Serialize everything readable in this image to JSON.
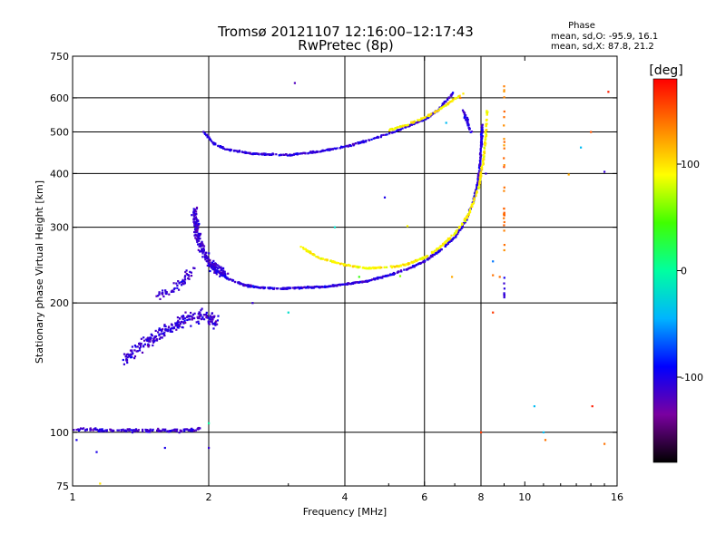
{
  "header": {
    "title_line1": "Tromsø 20121107 12:16:00–12:17:43",
    "title_line2": "RwPretec (8p)",
    "phase_heading": "Phase",
    "phase_o": "mean, sd,O: -95.9, 16.1",
    "phase_x": "mean, sd,X:  87.8, 21.2"
  },
  "chart_data": {
    "type": "scatter",
    "xlabel": "Frequency [MHz]",
    "ylabel": "Stationary phase Virtual Height [km]",
    "xscale": "log",
    "yscale": "log",
    "xlim": [
      1,
      16
    ],
    "ylim": [
      75,
      750
    ],
    "xticks": [
      1,
      2,
      4,
      6,
      8,
      10,
      16
    ],
    "yticks": [
      75,
      100,
      200,
      300,
      400,
      500,
      600,
      750
    ],
    "xgrid": [
      2,
      4,
      6,
      8
    ],
    "ygrid": [
      100,
      200,
      300,
      400,
      500,
      600
    ],
    "colorbar": {
      "label": "[deg]",
      "range": [
        -180,
        180
      ],
      "ticks": [
        100,
        0,
        -100
      ],
      "stops": [
        "#000000",
        "#7a00a0",
        "#0000ff",
        "#00b4ff",
        "#00ffa0",
        "#40ff00",
        "#ffff00",
        "#ff8000",
        "#ff0000"
      ]
    },
    "series": [
      {
        "type": "polyline",
        "points": [
          [
            1.0,
            102
          ],
          [
            1.2,
            101
          ],
          [
            1.4,
            101
          ],
          [
            1.6,
            101
          ],
          [
            1.8,
            101
          ],
          [
            1.92,
            102
          ]
        ],
        "phase": -110,
        "jitter": [
          0.01,
          0.012
        ],
        "count": 160
      },
      {
        "type": "polyline",
        "points": [
          [
            1.3,
            148
          ],
          [
            1.4,
            158
          ],
          [
            1.5,
            165
          ],
          [
            1.6,
            172
          ],
          [
            1.7,
            178
          ],
          [
            1.8,
            185
          ],
          [
            1.95,
            188
          ],
          [
            2.08,
            180
          ]
        ],
        "phase": -110,
        "jitter": [
          0.03,
          0.05
        ],
        "count": 260
      },
      {
        "type": "polyline",
        "points": [
          [
            1.5,
            205
          ],
          [
            1.65,
            212
          ],
          [
            1.75,
            225
          ],
          [
            1.85,
            240
          ]
        ],
        "phase": -110,
        "jitter": [
          0.02,
          0.03
        ],
        "count": 60
      },
      {
        "type": "polyline",
        "points": [
          [
            1.86,
            330
          ],
          [
            1.88,
            300
          ],
          [
            1.9,
            280
          ],
          [
            1.95,
            262
          ],
          [
            2.0,
            250
          ],
          [
            2.05,
            243
          ],
          [
            2.1,
            238
          ],
          [
            2.2,
            232
          ]
        ],
        "phase": -110,
        "jitter": [
          0.02,
          0.04
        ],
        "count": 230
      },
      {
        "type": "polyline",
        "points": [
          [
            2.0,
            245
          ],
          [
            2.08,
            238
          ],
          [
            2.2,
            228
          ],
          [
            2.4,
            220
          ],
          [
            2.6,
            217
          ],
          [
            2.9,
            216
          ],
          [
            3.2,
            217
          ],
          [
            3.6,
            218
          ],
          [
            4.0,
            221
          ],
          [
            4.5,
            225
          ],
          [
            5.0,
            232
          ],
          [
            5.5,
            240
          ],
          [
            6.0,
            250
          ],
          [
            6.5,
            265
          ],
          [
            7.0,
            285
          ],
          [
            7.4,
            310
          ],
          [
            7.7,
            345
          ],
          [
            7.9,
            390
          ],
          [
            8.0,
            450
          ],
          [
            8.05,
            520
          ]
        ],
        "phase": -105,
        "jitter": [
          0.006,
          0.006
        ],
        "count": 600
      },
      {
        "type": "polyline",
        "points": [
          [
            3.2,
            270
          ],
          [
            3.5,
            255
          ],
          [
            4.0,
            245
          ],
          [
            4.5,
            241
          ],
          [
            5.0,
            242
          ],
          [
            5.5,
            246
          ],
          [
            6.0,
            255
          ],
          [
            6.5,
            270
          ],
          [
            7.0,
            290
          ],
          [
            7.5,
            320
          ],
          [
            7.9,
            370
          ],
          [
            8.1,
            430
          ],
          [
            8.2,
            490
          ],
          [
            8.25,
            560
          ]
        ],
        "phase": 95,
        "jitter": [
          0.006,
          0.006
        ],
        "count": 380
      },
      {
        "type": "polyline",
        "points": [
          [
            1.95,
            500
          ],
          [
            2.05,
            470
          ],
          [
            2.2,
            455
          ],
          [
            2.5,
            445
          ],
          [
            3.0,
            442
          ],
          [
            3.5,
            450
          ],
          [
            4.0,
            462
          ],
          [
            4.5,
            478
          ],
          [
            5.0,
            495
          ],
          [
            5.5,
            515
          ],
          [
            6.0,
            535
          ],
          [
            6.4,
            560
          ],
          [
            6.7,
            590
          ],
          [
            7.0,
            625
          ]
        ],
        "phase": -105,
        "jitter": [
          0.006,
          0.006
        ],
        "count": 340
      },
      {
        "type": "polyline",
        "points": [
          [
            5.0,
            505
          ],
          [
            5.5,
            520
          ],
          [
            6.0,
            540
          ],
          [
            6.5,
            565
          ],
          [
            6.9,
            590
          ],
          [
            7.3,
            615
          ]
        ],
        "phase": 95,
        "jitter": [
          0.006,
          0.006
        ],
        "count": 90
      },
      {
        "type": "polyline",
        "points": [
          [
            7.3,
            560
          ],
          [
            7.5,
            520
          ],
          [
            7.6,
            500
          ]
        ],
        "phase": -105,
        "jitter": [
          0.01,
          0.01
        ],
        "count": 40
      },
      {
        "type": "polyline",
        "points": [
          [
            9.0,
            640
          ],
          [
            9.0,
            430
          ],
          [
            9.0,
            250
          ]
        ],
        "phase": 140,
        "jitter": [
          0.003,
          0.06
        ],
        "count": 30
      },
      {
        "type": "polyline",
        "points": [
          [
            9.0,
            230
          ],
          [
            9.0,
            200
          ]
        ],
        "phase": -105,
        "jitter": [
          0.003,
          0.02
        ],
        "count": 8
      }
    ],
    "points": [
      [
        3.1,
        650,
        -120
      ],
      [
        4.9,
        352,
        -100
      ],
      [
        2.0,
        105,
        0
      ],
      [
        2.0,
        92,
        -110
      ],
      [
        1.02,
        96,
        -100
      ],
      [
        1.13,
        90,
        -100
      ],
      [
        1.6,
        92,
        -100
      ],
      [
        8.0,
        100,
        160
      ],
      [
        10.5,
        115,
        -40
      ],
      [
        11.0,
        100,
        -40
      ],
      [
        11.1,
        96,
        140
      ],
      [
        12.5,
        398,
        120
      ],
      [
        14.0,
        500,
        150
      ],
      [
        15.0,
        404,
        -110
      ],
      [
        15.3,
        620,
        170
      ],
      [
        15.0,
        94,
        140
      ],
      [
        14.1,
        115,
        170
      ],
      [
        13.3,
        460,
        -40
      ],
      [
        7.2,
        600,
        140
      ],
      [
        6.7,
        525,
        -40
      ],
      [
        8.2,
        400,
        -110
      ],
      [
        3.8,
        300,
        -20
      ],
      [
        4.3,
        230,
        40
      ],
      [
        5.3,
        231,
        60
      ],
      [
        5.5,
        302,
        90
      ],
      [
        8.5,
        232,
        140
      ],
      [
        8.5,
        250,
        -60
      ],
      [
        8.8,
        230,
        140
      ],
      [
        8.5,
        190,
        160
      ],
      [
        6.9,
        230,
        120
      ],
      [
        2.5,
        200,
        -110
      ],
      [
        3.0,
        190,
        -20
      ],
      [
        6.8,
        600,
        -120
      ],
      [
        1.15,
        76,
        100
      ]
    ]
  }
}
